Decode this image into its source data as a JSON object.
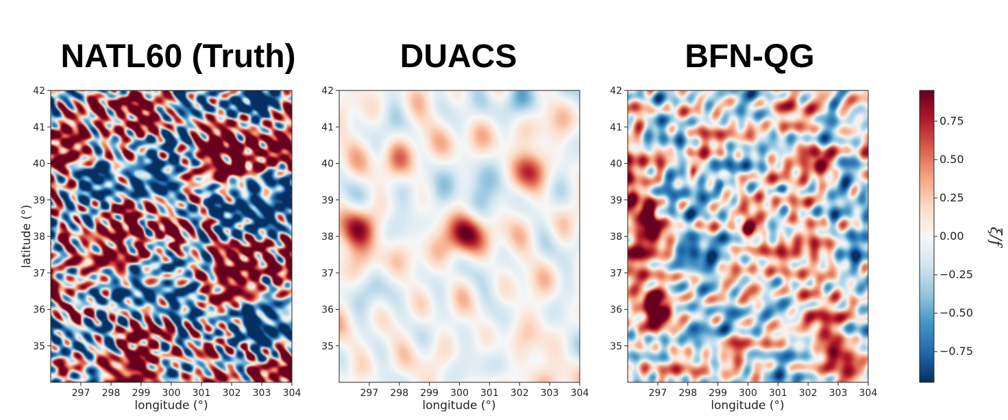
{
  "chart_data": [
    {
      "type": "heatmap",
      "title": "NATL60 (Truth)",
      "xlabel": "longitude (°)",
      "ylabel": "latitude (°)",
      "xlim": [
        296,
        304
      ],
      "ylim": [
        34,
        42
      ],
      "xticks": [
        "297",
        "298",
        "299",
        "300",
        "301",
        "302",
        "303",
        "304"
      ],
      "yticks": [
        "35",
        "36",
        "37",
        "38",
        "39",
        "40",
        "41",
        "42"
      ],
      "features": [
        {
          "lon": 300.1,
          "lat": 38.15,
          "value": 0.95
        },
        {
          "lon": 298.3,
          "lat": 39.95,
          "value": 0.7
        },
        {
          "lon": 302.5,
          "lat": 34.9,
          "value": 0.45
        },
        {
          "lon": 296.8,
          "lat": 38.3,
          "value": 0.9
        },
        {
          "lon": 296.8,
          "lat": 35.8,
          "value": 0.95
        },
        {
          "lon": 302.9,
          "lat": 41.5,
          "value": -0.4
        },
        {
          "lon": 302.2,
          "lat": 39.9,
          "value": 0.95
        },
        {
          "lon": 299.0,
          "lat": 39.6,
          "value": -0.8
        },
        {
          "lon": 301.2,
          "lat": 39.3,
          "value": -0.7
        }
      ],
      "detail": "high"
    },
    {
      "type": "heatmap",
      "title": "DUACS",
      "xlabel": "longitude (°)",
      "ylabel": "",
      "xlim": [
        296,
        304
      ],
      "ylim": [
        34,
        42
      ],
      "xticks": [
        "297",
        "298",
        "299",
        "300",
        "301",
        "302",
        "303",
        "304"
      ],
      "yticks": [
        "35",
        "36",
        "37",
        "38",
        "39",
        "40",
        "41",
        "42"
      ],
      "features": [
        {
          "lon": 300.2,
          "lat": 38.1,
          "value": 0.95
        },
        {
          "lon": 296.6,
          "lat": 38.2,
          "value": 0.85
        },
        {
          "lon": 302.3,
          "lat": 39.8,
          "value": 0.7
        },
        {
          "lon": 298.0,
          "lat": 40.0,
          "value": 0.35
        },
        {
          "lon": 299.5,
          "lat": 39.2,
          "value": -0.35
        },
        {
          "lon": 301.3,
          "lat": 39.5,
          "value": -0.3
        },
        {
          "lon": 302.0,
          "lat": 41.7,
          "value": -0.3
        },
        {
          "lon": 303.0,
          "lat": 35.0,
          "value": 0.3
        }
      ],
      "detail": "low"
    },
    {
      "type": "heatmap",
      "title": "BFN-QG",
      "xlabel": "longitude (°)",
      "ylabel": "",
      "xlim": [
        296,
        304
      ],
      "ylim": [
        34,
        42
      ],
      "xticks": [
        "297",
        "298",
        "299",
        "300",
        "301",
        "302",
        "303",
        "304"
      ],
      "yticks": [
        "35",
        "36",
        "37",
        "38",
        "39",
        "40",
        "41",
        "42"
      ],
      "features": [
        {
          "lon": 300.1,
          "lat": 38.15,
          "value": 0.95
        },
        {
          "lon": 298.3,
          "lat": 39.9,
          "value": 0.7
        },
        {
          "lon": 296.8,
          "lat": 38.4,
          "value": 0.85
        },
        {
          "lon": 296.9,
          "lat": 36.1,
          "value": 0.9
        },
        {
          "lon": 302.4,
          "lat": 40.1,
          "value": 0.7
        },
        {
          "lon": 302.8,
          "lat": 41.6,
          "value": -0.45
        },
        {
          "lon": 302.9,
          "lat": 35.0,
          "value": 0.4
        },
        {
          "lon": 299.3,
          "lat": 39.5,
          "value": -0.55
        },
        {
          "lon": 301.2,
          "lat": 39.2,
          "value": -0.5
        }
      ],
      "detail": "medium"
    }
  ],
  "colorbar": {
    "label": "ξ/f",
    "range": [
      -0.95,
      0.95
    ],
    "ticks": [
      "0.75",
      "0.50",
      "0.25",
      "0.00",
      "−0.25",
      "−0.50",
      "−0.75"
    ],
    "tick_values": [
      0.75,
      0.5,
      0.25,
      0.0,
      -0.25,
      -0.5,
      -0.75
    ],
    "colormap": "RdBu_r",
    "colors": [
      "#053061",
      "#2166ac",
      "#4393c3",
      "#92c5de",
      "#d1e5f0",
      "#f7f7f7",
      "#fddbc7",
      "#f4a582",
      "#d6604d",
      "#b2182b",
      "#67001f"
    ]
  }
}
